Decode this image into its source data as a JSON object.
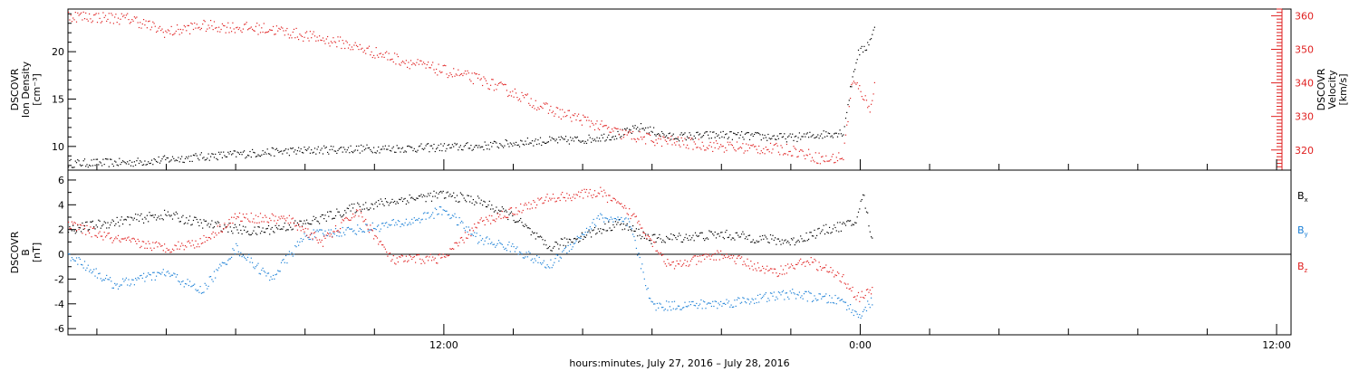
{
  "chart_data": [
    {
      "type": "scatter",
      "panel": "density-velocity",
      "ylabel": [
        "DSCOVR",
        "Ion Density",
        "[cm⁻³]"
      ],
      "ylim": [
        7.5,
        24.5
      ],
      "yticks": [
        10,
        15,
        20
      ],
      "y2label": [
        "DSCOVR",
        "Velocity",
        "[km/s]"
      ],
      "y2lim": [
        314,
        362
      ],
      "y2ticks": [
        320,
        330,
        340,
        350,
        360
      ],
      "x_start": "2016-07-27 01:10",
      "x_end": "2016-07-28 12:25",
      "series": [
        {
          "axis": "left",
          "color": "#000000",
          "points": [
            [
              "2016-07-27 01:10",
              8.2
            ],
            [
              "2016-07-27 03:00",
              8.3
            ],
            [
              "2016-07-27 05:00",
              8.9
            ],
            [
              "2016-07-27 07:00",
              9.4
            ],
            [
              "2016-07-27 09:00",
              9.7
            ],
            [
              "2016-07-27 11:00",
              9.8
            ],
            [
              "2016-07-27 13:00",
              10.0
            ],
            [
              "2016-07-27 14:30",
              10.5
            ],
            [
              "2016-07-27 16:00",
              10.7
            ],
            [
              "2016-07-27 17:00",
              11.2
            ],
            [
              "2016-07-27 17:40",
              12.0
            ],
            [
              "2016-07-27 18:30",
              11.0
            ],
            [
              "2016-07-27 20:00",
              11.2
            ],
            [
              "2016-07-27 22:00",
              10.9
            ],
            [
              "2016-07-27 23:30",
              11.5
            ],
            [
              "2016-07-27 23:45",
              17.0
            ],
            [
              "2016-07-27 23:55",
              19.8
            ],
            [
              "2016-07-28 00:10",
              20.5
            ],
            [
              "2016-07-28 00:25",
              22.5
            ]
          ]
        },
        {
          "axis": "right",
          "color": "#e02020",
          "points": [
            [
              "2016-07-27 01:10",
              360
            ],
            [
              "2016-07-27 03:00",
              359
            ],
            [
              "2016-07-27 04:00",
              355
            ],
            [
              "2016-07-27 05:00",
              357
            ],
            [
              "2016-07-27 07:00",
              356
            ],
            [
              "2016-07-27 09:00",
              352
            ],
            [
              "2016-07-27 11:00",
              346
            ],
            [
              "2016-07-27 13:00",
              341
            ],
            [
              "2016-07-27 14:00",
              337
            ],
            [
              "2016-07-27 15:00",
              332
            ],
            [
              "2016-07-27 16:00",
              329
            ],
            [
              "2016-07-27 17:00",
              325
            ],
            [
              "2016-07-27 18:00",
              323
            ],
            [
              "2016-07-27 20:00",
              321
            ],
            [
              "2016-07-27 22:00",
              320
            ],
            [
              "2016-07-27 23:00",
              317
            ],
            [
              "2016-07-27 23:30",
              318
            ],
            [
              "2016-07-27 23:45",
              340
            ],
            [
              "2016-07-28 00:00",
              338
            ],
            [
              "2016-07-28 00:15",
              332
            ],
            [
              "2016-07-28 00:25",
              340
            ]
          ]
        }
      ]
    },
    {
      "type": "scatter",
      "panel": "magnetic-field",
      "ylabel": [
        "DSCOVR",
        "B",
        "[nT]"
      ],
      "ylim": [
        -6.5,
        6.8
      ],
      "yticks": [
        -6,
        -4,
        -2,
        0,
        2,
        4,
        6
      ],
      "xticks": [
        "12:00",
        "0:00",
        "12:00"
      ],
      "xlabel": "hours:minutes, July 27, 2016 – July 28, 2016",
      "legend": [
        {
          "label": "B",
          "sub": "x",
          "color": "#000000"
        },
        {
          "label": "B",
          "sub": "y",
          "color": "#1a7fd6"
        },
        {
          "label": "B",
          "sub": "z",
          "color": "#e02020"
        }
      ],
      "series": [
        {
          "name": "Bx",
          "color": "#000000",
          "points": [
            [
              "2016-07-27 01:10",
              2.0
            ],
            [
              "2016-07-27 02:30",
              2.6
            ],
            [
              "2016-07-27 04:00",
              3.2
            ],
            [
              "2016-07-27 05:00",
              2.5
            ],
            [
              "2016-07-27 06:30",
              1.8
            ],
            [
              "2016-07-27 08:00",
              2.5
            ],
            [
              "2016-07-27 09:30",
              3.8
            ],
            [
              "2016-07-27 11:00",
              4.5
            ],
            [
              "2016-07-27 12:00",
              4.8
            ],
            [
              "2016-07-27 13:00",
              4.3
            ],
            [
              "2016-07-27 14:00",
              3.0
            ],
            [
              "2016-07-27 15:00",
              0.5
            ],
            [
              "2016-07-27 16:00",
              1.5
            ],
            [
              "2016-07-27 17:00",
              2.5
            ],
            [
              "2016-07-27 18:00",
              1.2
            ],
            [
              "2016-07-27 20:00",
              1.6
            ],
            [
              "2016-07-27 22:00",
              1.0
            ],
            [
              "2016-07-27 23:00",
              2.0
            ],
            [
              "2016-07-27 23:50",
              2.5
            ],
            [
              "2016-07-28 00:05",
              4.8
            ],
            [
              "2016-07-28 00:20",
              1.0
            ]
          ]
        },
        {
          "name": "By",
          "color": "#1a7fd6",
          "points": [
            [
              "2016-07-27 01:10",
              0.0
            ],
            [
              "2016-07-27 02:30",
              -2.5
            ],
            [
              "2016-07-27 04:00",
              -1.5
            ],
            [
              "2016-07-27 05:00",
              -3.0
            ],
            [
              "2016-07-27 06:00",
              0.5
            ],
            [
              "2016-07-27 07:00",
              -2.0
            ],
            [
              "2016-07-27 08:00",
              1.5
            ],
            [
              "2016-07-27 09:30",
              2.0
            ],
            [
              "2016-07-27 11:00",
              2.6
            ],
            [
              "2016-07-27 12:00",
              3.6
            ],
            [
              "2016-07-27 13:00",
              1.2
            ],
            [
              "2016-07-27 14:00",
              0.5
            ],
            [
              "2016-07-27 15:00",
              -1.0
            ],
            [
              "2016-07-27 16:30",
              3.0
            ],
            [
              "2016-07-27 17:20",
              2.5
            ],
            [
              "2016-07-27 18:00",
              -4.2
            ],
            [
              "2016-07-27 20:00",
              -4.0
            ],
            [
              "2016-07-27 22:00",
              -3.2
            ],
            [
              "2016-07-27 23:30",
              -3.8
            ],
            [
              "2016-07-27 23:55",
              -5.0
            ],
            [
              "2016-07-28 00:20",
              -3.8
            ]
          ]
        },
        {
          "name": "Bz",
          "color": "#e02020",
          "points": [
            [
              "2016-07-27 01:10",
              2.4
            ],
            [
              "2016-07-27 02:30",
              1.2
            ],
            [
              "2016-07-27 04:00",
              0.5
            ],
            [
              "2016-07-27 05:00",
              1.0
            ],
            [
              "2016-07-27 06:00",
              3.0
            ],
            [
              "2016-07-27 07:30",
              2.8
            ],
            [
              "2016-07-27 08:30",
              1.0
            ],
            [
              "2016-07-27 09:30",
              3.5
            ],
            [
              "2016-07-27 10:30",
              -0.5
            ],
            [
              "2016-07-27 12:00",
              -0.3
            ],
            [
              "2016-07-27 13:00",
              2.5
            ],
            [
              "2016-07-27 15:00",
              4.5
            ],
            [
              "2016-07-27 16:30",
              5.0
            ],
            [
              "2016-07-27 17:30",
              3.0
            ],
            [
              "2016-07-27 18:30",
              -1.0
            ],
            [
              "2016-07-27 20:00",
              0.0
            ],
            [
              "2016-07-27 21:30",
              -1.5
            ],
            [
              "2016-07-27 22:30",
              -0.5
            ],
            [
              "2016-07-27 23:30",
              -2.0
            ],
            [
              "2016-07-27 23:55",
              -3.5
            ],
            [
              "2016-07-28 00:20",
              -3.0
            ]
          ]
        }
      ]
    }
  ]
}
